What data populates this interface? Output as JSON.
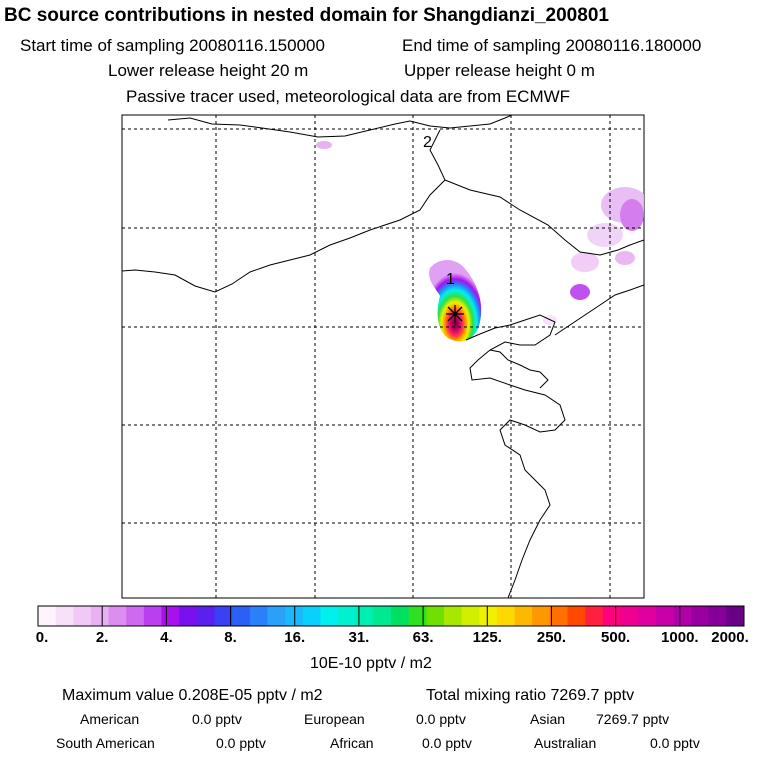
{
  "header": {
    "title": "BC  source contributions in nested domain for Shangdianzi_200801",
    "start_time": "Start time of sampling 20080116.150000",
    "end_time": "End time of sampling 20080116.180000",
    "lower_height": "Lower release height   20 m",
    "upper_height": "Upper release height    0 m",
    "tracer_note": "Passive tracer used, meteorological data are from ECMWF"
  },
  "map": {
    "markers": [
      {
        "label": "1"
      },
      {
        "label": "2"
      }
    ],
    "receptor": "station-star"
  },
  "colorbar": {
    "ticks": [
      "0.",
      "2.",
      "4.",
      "8.",
      "16.",
      "31.",
      "63.",
      "125.",
      "250.",
      "500.",
      "1000.",
      "2000."
    ],
    "colors": [
      "#fdf4fd",
      "#f8e0fa",
      "#f1c8f6",
      "#e9b0f2",
      "#dc8ef0",
      "#cd6aee",
      "#bb3fee",
      "#a810ee",
      "#7a10ee",
      "#5a20f0",
      "#3a40f4",
      "#2a60f6",
      "#2a80f8",
      "#2aa0fa",
      "#1ab8fc",
      "#0ad0fe",
      "#00f0f0",
      "#00f0d0",
      "#00eeb0",
      "#00e890",
      "#00e060",
      "#30e020",
      "#70e000",
      "#a8e800",
      "#d0f000",
      "#f0f000",
      "#ffd800",
      "#ffb800",
      "#ff9800",
      "#ff7000",
      "#ff4800",
      "#ff2040",
      "#ff0080",
      "#f00090",
      "#e000a0",
      "#c800a8",
      "#b000a8",
      "#9a00a0",
      "#840098",
      "#6a0088"
    ],
    "units": "10E-10 pptv / m2"
  },
  "summary": {
    "max_label": "Maximum value  0.208E-05 pptv / m2",
    "total_label": "Total mixing ratio     7269.7 pptv",
    "rows": [
      [
        {
          "name": "American",
          "value": "0.0 pptv"
        },
        {
          "name": "European",
          "value": "0.0 pptv"
        },
        {
          "name": "Asian",
          "value": "7269.7 pptv"
        }
      ],
      [
        {
          "name": "South American",
          "value": "0.0 pptv"
        },
        {
          "name": "African",
          "value": "0.0 pptv"
        },
        {
          "name": "Australian",
          "value": "0.0 pptv"
        }
      ]
    ]
  }
}
